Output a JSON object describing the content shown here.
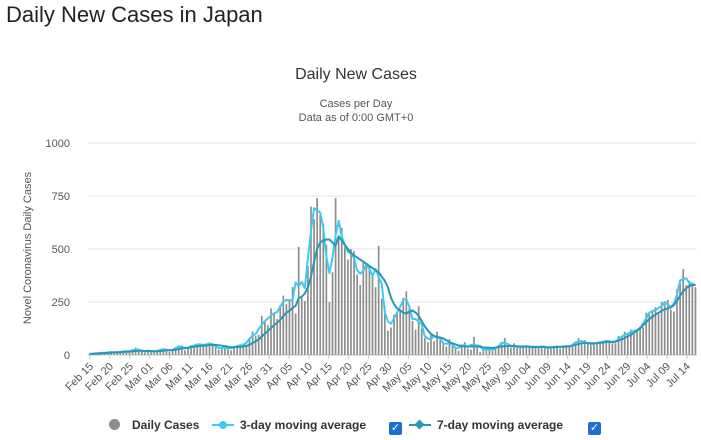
{
  "page": {
    "title": "Daily New Cases in Japan"
  },
  "chart_data": {
    "type": "bar",
    "title": "Daily New Cases",
    "subtitle": "Cases per Day",
    "subtitle2": "Data as of 0:00 GMT+0",
    "ylabel": "Novel Coronavirus Daily Cases",
    "ylim": [
      0,
      1000
    ],
    "yticks": [
      "0",
      "250",
      "500",
      "750",
      "1000"
    ],
    "x_tick_labels": [
      "Feb 15",
      "Feb 20",
      "Feb 25",
      "Mar 01",
      "Mar 06",
      "Mar 11",
      "Mar 16",
      "Mar 21",
      "Mar 26",
      "Mar 31",
      "Apr 05",
      "Apr 10",
      "Apr 15",
      "Apr 20",
      "Apr 25",
      "Apr 30",
      "May 05",
      "May 10",
      "May 15",
      "May 20",
      "May 25",
      "May 30",
      "Jun 04",
      "Jun 09",
      "Jun 14",
      "Jun 19",
      "Jun 24",
      "Jun 29",
      "Jul 04",
      "Jul 09",
      "Jul 14"
    ],
    "start_label": "Feb 15",
    "grid": true,
    "legend_position": "bottom",
    "colors": {
      "bars": "#8d8d8d",
      "avg3": "#3ecbf0",
      "avg7": "#2a95b8",
      "grid": "#e6e6e6"
    },
    "series": [
      {
        "name": "Daily Cases",
        "kind": "bar",
        "values": [
          5,
          5,
          8,
          10,
          10,
          10,
          12,
          14,
          15,
          10,
          18,
          15,
          22,
          18,
          15,
          35,
          22,
          18,
          12,
          25,
          15,
          12,
          20,
          28,
          25,
          30,
          15,
          22,
          35,
          42,
          45,
          22,
          35,
          40,
          45,
          50,
          48,
          52,
          42,
          60,
          55,
          38,
          25,
          35,
          40,
          30,
          22,
          42,
          45,
          38,
          55,
          45,
          75,
          110,
          90,
          95,
          185,
          155,
          140,
          220,
          200,
          170,
          235,
          280,
          240,
          260,
          320,
          195,
          510,
          270,
          255,
          420,
          700,
          640,
          740,
          660,
          620,
          520,
          250,
          390,
          740,
          560,
          600,
          510,
          450,
          500,
          490,
          380,
          330,
          440,
          420,
          420,
          380,
          320,
          515,
          265,
          230,
          115,
          130,
          190,
          200,
          210,
          270,
          300,
          220,
          160,
          120,
          230,
          125,
          80,
          60,
          95,
          65,
          110,
          70,
          55,
          40,
          75,
          45,
          30,
          20,
          50,
          60,
          30,
          25,
          85,
          35,
          15,
          30,
          30,
          25,
          20,
          30,
          45,
          50,
          80,
          40,
          35,
          55,
          35,
          30,
          40,
          45,
          40,
          35,
          35,
          35,
          45,
          40,
          30,
          30,
          40,
          45,
          30,
          40,
          40,
          40,
          45,
          55,
          80,
          50,
          70,
          55,
          45,
          50,
          60,
          60,
          60,
          70,
          70,
          55,
          55,
          90,
          90,
          110,
          100,
          120,
          100,
          120,
          135,
          130,
          200,
          190,
          210,
          225,
          195,
          250,
          240,
          260,
          215,
          205,
          310,
          340,
          405,
          330,
          350,
          340,
          320
        ]
      },
      {
        "name": "3-day moving average",
        "kind": "line",
        "values": [
          5,
          6,
          8,
          9,
          10,
          11,
          12,
          14,
          13,
          14,
          14,
          18,
          18,
          18,
          23,
          25,
          25,
          18,
          18,
          17,
          17,
          16,
          20,
          24,
          28,
          23,
          22,
          24,
          33,
          41,
          37,
          34,
          33,
          42,
          45,
          50,
          50,
          47,
          51,
          52,
          51,
          39,
          33,
          33,
          35,
          32,
          31,
          36,
          42,
          46,
          46,
          58,
          77,
          92,
          98,
          123,
          143,
          160,
          172,
          187,
          197,
          202,
          228,
          252,
          260,
          258,
          258,
          342,
          325,
          345,
          315,
          458,
          587,
          693,
          680,
          673,
          600,
          463,
          387,
          460,
          563,
          633,
          557,
          520,
          487,
          480,
          457,
          400,
          383,
          397,
          427,
          407,
          373,
          405,
          367,
          337,
          203,
          158,
          147,
          173,
          200,
          227,
          260,
          263,
          227,
          170,
          170,
          158,
          145,
          88,
          78,
          73,
          90,
          82,
          78,
          55,
          53,
          53,
          50,
          32,
          33,
          43,
          47,
          38,
          47,
          48,
          45,
          43,
          25,
          28,
          25,
          25,
          32,
          42,
          58,
          57,
          52,
          43,
          42,
          40,
          35,
          38,
          42,
          40,
          37,
          35,
          38,
          40,
          38,
          33,
          33,
          38,
          38,
          38,
          40,
          42,
          40,
          47,
          60,
          62,
          67,
          58,
          57,
          50,
          52,
          57,
          60,
          63,
          67,
          65,
          60,
          60,
          78,
          85,
          97,
          100,
          110,
          113,
          118,
          128,
          150,
          173,
          200,
          208,
          210,
          223,
          228,
          250,
          238,
          227,
          243,
          285,
          352,
          358,
          362,
          340,
          337,
          328
        ]
      },
      {
        "name": "7-day moving average",
        "kind": "line",
        "values": [
          5,
          5,
          6,
          7,
          8,
          9,
          10,
          11,
          12,
          12,
          13,
          14,
          15,
          16,
          17,
          19,
          20,
          20,
          19,
          19,
          19,
          18,
          18,
          19,
          20,
          22,
          22,
          23,
          25,
          28,
          31,
          32,
          34,
          37,
          39,
          41,
          43,
          44,
          45,
          47,
          48,
          47,
          46,
          44,
          42,
          39,
          37,
          37,
          38,
          38,
          40,
          43,
          48,
          56,
          65,
          73,
          87,
          101,
          113,
          127,
          142,
          152,
          166,
          183,
          200,
          208,
          222,
          232,
          268,
          275,
          290,
          320,
          370,
          440,
          500,
          530,
          540,
          545,
          545,
          530,
          515,
          560,
          540,
          520,
          500,
          480,
          470,
          460,
          450,
          440,
          430,
          420,
          410,
          400,
          390,
          370,
          350,
          320,
          270,
          240,
          220,
          210,
          200,
          195,
          205,
          210,
          200,
          185,
          160,
          135,
          115,
          100,
          90,
          85,
          82,
          78,
          70,
          60,
          55,
          50,
          45,
          42,
          40,
          40,
          40,
          40,
          40,
          38,
          36,
          35,
          34,
          33,
          35,
          38,
          40,
          42,
          42,
          43,
          42,
          41,
          40,
          40,
          40,
          39,
          38,
          38,
          38,
          38,
          38,
          37,
          37,
          37,
          38,
          38,
          39,
          40,
          41,
          44,
          48,
          52,
          55,
          57,
          56,
          55,
          55,
          56,
          58,
          59,
          61,
          62,
          62,
          64,
          68,
          73,
          80,
          88,
          95,
          105,
          115,
          125,
          140,
          155,
          170,
          180,
          190,
          200,
          208,
          215,
          220,
          225,
          235,
          255,
          280,
          300,
          315,
          325,
          330,
          330
        ]
      }
    ]
  },
  "legend": {
    "items": [
      {
        "label": "Daily Cases"
      },
      {
        "label": "3-day moving average",
        "checked": true
      },
      {
        "label": "7-day moving average",
        "checked": true
      }
    ],
    "checkbox_glyph": "✓"
  }
}
